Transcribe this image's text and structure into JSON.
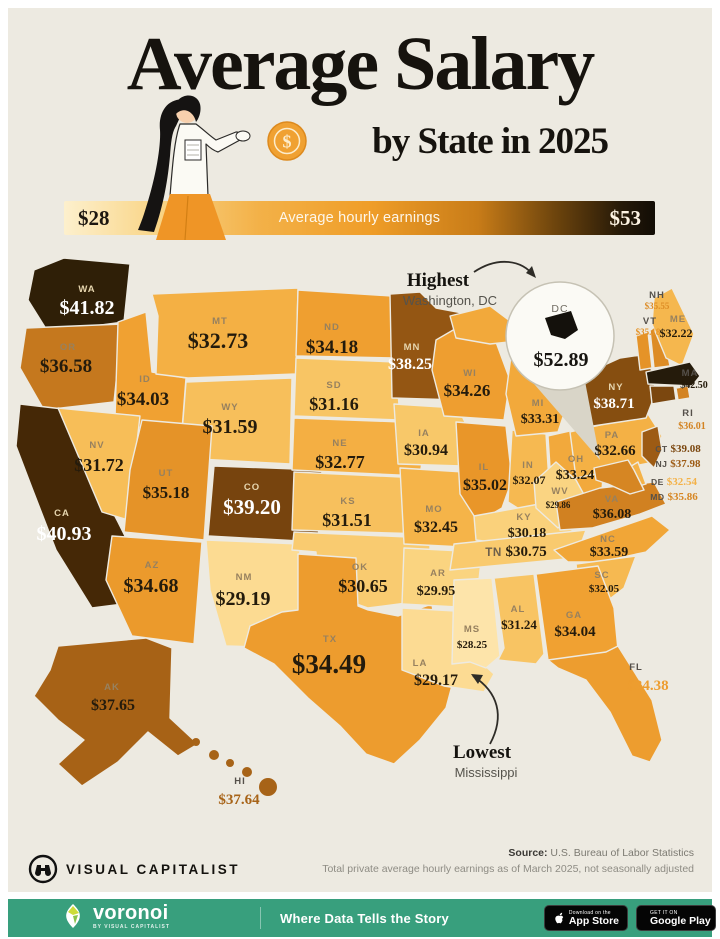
{
  "title": {
    "line1": "Average Salary",
    "line2": "by State in 2025",
    "coin_symbol": "$"
  },
  "legend": {
    "min_label": "$28",
    "max_label": "$53",
    "title": "Average hourly earnings"
  },
  "annotations": {
    "highest": {
      "title": "Highest",
      "subtitle": "Washington, DC"
    },
    "lowest": {
      "title": "Lowest",
      "subtitle": "Mississippi"
    }
  },
  "chart_data": {
    "type": "choropleth_map",
    "title": "Average Salary by State in 2025",
    "metric": "Average hourly earnings (USD per hour)",
    "scale": {
      "min": 28,
      "max": 53
    },
    "highest": {
      "name": "Washington, DC",
      "abbr": "DC",
      "value": 52.89
    },
    "lowest": {
      "name": "Mississippi",
      "abbr": "MS",
      "value": 28.25
    },
    "color_ramp": [
      [
        28,
        "#fde6b0"
      ],
      [
        29,
        "#fcdd97"
      ],
      [
        30,
        "#fad37f"
      ],
      [
        31,
        "#f8c768"
      ],
      [
        32,
        "#f6ba52"
      ],
      [
        33,
        "#f3ac3f"
      ],
      [
        34,
        "#f0a132"
      ],
      [
        35,
        "#e99629"
      ],
      [
        36,
        "#d38322"
      ],
      [
        37,
        "#ba701b"
      ],
      [
        38,
        "#9c5b14"
      ],
      [
        39,
        "#7d480f"
      ],
      [
        40,
        "#60360a"
      ],
      [
        41,
        "#432706"
      ],
      [
        42,
        "#2b1d07"
      ],
      [
        43,
        "#1e180e"
      ],
      [
        53,
        "#13110a"
      ]
    ],
    "states": [
      {
        "abbr": "WA",
        "value": 41.82
      },
      {
        "abbr": "OR",
        "value": 36.58
      },
      {
        "abbr": "CA",
        "value": 40.93
      },
      {
        "abbr": "ID",
        "value": 34.03
      },
      {
        "abbr": "NV",
        "value": 31.72
      },
      {
        "abbr": "UT",
        "value": 35.18
      },
      {
        "abbr": "AZ",
        "value": 34.68
      },
      {
        "abbr": "MT",
        "value": 32.73
      },
      {
        "abbr": "WY",
        "value": 31.59
      },
      {
        "abbr": "CO",
        "value": 39.2
      },
      {
        "abbr": "NM",
        "value": 29.19
      },
      {
        "abbr": "ND",
        "value": 34.18
      },
      {
        "abbr": "SD",
        "value": 31.16
      },
      {
        "abbr": "NE",
        "value": 32.77
      },
      {
        "abbr": "KS",
        "value": 31.51
      },
      {
        "abbr": "OK",
        "value": 30.65
      },
      {
        "abbr": "TX",
        "value": 34.49
      },
      {
        "abbr": "MN",
        "value": 38.25
      },
      {
        "abbr": "IA",
        "value": 30.94
      },
      {
        "abbr": "MO",
        "value": 32.45
      },
      {
        "abbr": "AR",
        "value": 29.95
      },
      {
        "abbr": "LA",
        "value": 29.17
      },
      {
        "abbr": "WI",
        "value": 34.26
      },
      {
        "abbr": "IL",
        "value": 35.02
      },
      {
        "abbr": "IN",
        "value": 32.07
      },
      {
        "abbr": "MI",
        "value": 33.31
      },
      {
        "abbr": "OH",
        "value": 33.24
      },
      {
        "abbr": "KY",
        "value": 30.18
      },
      {
        "abbr": "TN",
        "value": 30.75
      },
      {
        "abbr": "MS",
        "value": 28.25
      },
      {
        "abbr": "AL",
        "value": 31.24
      },
      {
        "abbr": "GA",
        "value": 34.04
      },
      {
        "abbr": "FL",
        "value": 34.38
      },
      {
        "abbr": "SC",
        "value": 32.05
      },
      {
        "abbr": "NC",
        "value": 33.59
      },
      {
        "abbr": "VA",
        "value": 36.08
      },
      {
        "abbr": "WV",
        "value": 29.86
      },
      {
        "abbr": "PA",
        "value": 32.66
      },
      {
        "abbr": "NY",
        "value": 38.71
      },
      {
        "abbr": "VT",
        "value": 35.18
      },
      {
        "abbr": "NH",
        "value": 35.55
      },
      {
        "abbr": "ME",
        "value": 32.22
      },
      {
        "abbr": "MA",
        "value": 42.5
      },
      {
        "abbr": "RI",
        "value": 36.01
      },
      {
        "abbr": "CT",
        "value": 39.08
      },
      {
        "abbr": "NJ",
        "value": 37.98
      },
      {
        "abbr": "DE",
        "value": 32.54
      },
      {
        "abbr": "MD",
        "value": 35.86
      },
      {
        "abbr": "DC",
        "value": 52.89
      },
      {
        "abbr": "AK",
        "value": 37.65
      },
      {
        "abbr": "HI",
        "value": 37.64
      }
    ]
  },
  "footer": {
    "brand": "VISUAL CAPITALIST",
    "source_label": "Source:",
    "source": " U.S. Bureau of Labor Statistics",
    "note": "Total private average hourly earnings as of March 2025, not seasonally adjusted"
  },
  "bottom_bar": {
    "brand": "voronoi",
    "brand_sub": "BY VISUAL CAPITALIST",
    "tagline": "Where Data Tells the Story",
    "appstore_line1": "Download on the",
    "appstore_line2": "App Store",
    "gplay_line1": "GET IT ON",
    "gplay_line2": "Google Play",
    "accent": "#389f7d"
  }
}
